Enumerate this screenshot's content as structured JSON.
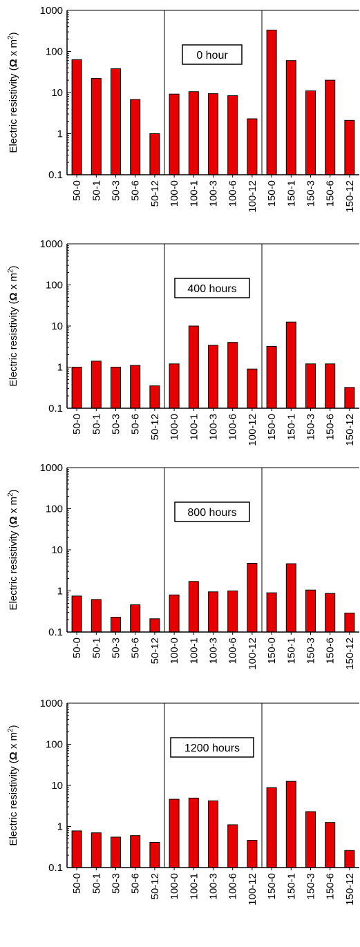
{
  "chart_data": [
    {
      "type": "bar",
      "annotation": "0 hour",
      "ylabel_prefix": "Electric resistivity (",
      "ylabel_omega": "Ω",
      "ylabel_mid": " x m",
      "ylabel_sup": "2",
      "ylabel_suffix": ")",
      "yscale": "log",
      "ylim": [
        0.1,
        1000
      ],
      "yticks": [
        "0.1",
        "1",
        "10",
        "100",
        "1000"
      ],
      "categories": [
        "50-0",
        "50-1",
        "50-3",
        "50-6",
        "50-12",
        "100-0",
        "100-1",
        "100-3",
        "100-6",
        "100-12",
        "150-0",
        "150-1",
        "150-3",
        "150-6",
        "150-12"
      ],
      "values": [
        63,
        22,
        38,
        6.8,
        1.0,
        9.2,
        10.5,
        9.4,
        8.4,
        2.3,
        330,
        60,
        11,
        20,
        2.1
      ],
      "group_separators_after": [
        "50-12",
        "100-12"
      ],
      "bar_color": "#e60000"
    },
    {
      "type": "bar",
      "annotation": "400 hours",
      "ylabel_prefix": "Electric resistivity (",
      "ylabel_omega": "Ω",
      "ylabel_mid": " x m",
      "ylabel_sup": "2",
      "ylabel_suffix": ")",
      "yscale": "log",
      "ylim": [
        0.1,
        1000
      ],
      "yticks": [
        "0.1",
        "1",
        "10",
        "100",
        "1000"
      ],
      "categories": [
        "50-0",
        "50-1",
        "50-3",
        "50-6",
        "50-12",
        "100-0",
        "100-1",
        "100-3",
        "100-6",
        "100-12",
        "150-0",
        "150-1",
        "150-3",
        "150-6",
        "150-12"
      ],
      "values": [
        1.0,
        1.4,
        1.0,
        1.1,
        0.35,
        1.2,
        10,
        3.4,
        4.0,
        0.9,
        3.2,
        12.5,
        1.2,
        1.2,
        0.32
      ],
      "group_separators_after": [
        "50-12",
        "100-12"
      ],
      "bar_color": "#e60000"
    },
    {
      "type": "bar",
      "annotation": "800 hours",
      "ylabel_prefix": "Electric resistivity (",
      "ylabel_omega": "Ω",
      "ylabel_mid": " x m",
      "ylabel_sup": "2",
      "ylabel_suffix": ")",
      "yscale": "log",
      "ylim": [
        0.1,
        1000
      ],
      "yticks": [
        "0.1",
        "1",
        "10",
        "100",
        "1000"
      ],
      "categories": [
        "50-0",
        "50-1",
        "50-3",
        "50-6",
        "50-12",
        "100-0",
        "100-1",
        "100-3",
        "100-6",
        "100-12",
        "150-0",
        "150-1",
        "150-3",
        "150-6",
        "150-12"
      ],
      "values": [
        0.75,
        0.62,
        0.23,
        0.46,
        0.21,
        0.8,
        1.7,
        0.95,
        1.0,
        4.7,
        0.9,
        4.6,
        1.05,
        0.87,
        0.29
      ],
      "group_separators_after": [
        "50-12",
        "100-12"
      ],
      "bar_color": "#e60000"
    },
    {
      "type": "bar",
      "annotation": "1200 hours",
      "ylabel_prefix": "Electric resistivity (",
      "ylabel_omega": "Ω",
      "ylabel_mid": " x m",
      "ylabel_sup": "2",
      "ylabel_suffix": ")",
      "yscale": "log",
      "ylim": [
        0.1,
        1000
      ],
      "yticks": [
        "0.1",
        "1",
        "10",
        "100",
        "1000"
      ],
      "categories": [
        "50-0",
        "50-1",
        "50-3",
        "50-6",
        "50-12",
        "100-0",
        "100-1",
        "100-3",
        "100-6",
        "100-12",
        "150-0",
        "150-1",
        "150-3",
        "150-6",
        "150-12"
      ],
      "values": [
        0.78,
        0.7,
        0.55,
        0.6,
        0.41,
        4.6,
        4.9,
        4.2,
        1.1,
        0.46,
        8.8,
        12.5,
        2.3,
        1.25,
        0.26
      ],
      "group_separators_after": [
        "50-12",
        "100-12"
      ],
      "bar_color": "#e60000"
    }
  ]
}
